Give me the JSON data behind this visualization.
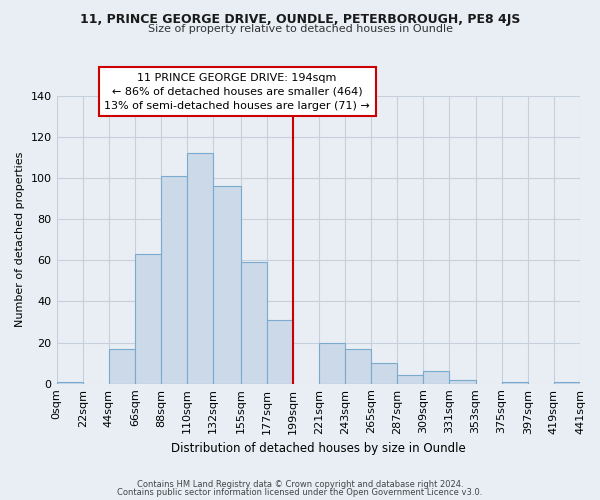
{
  "title_line1": "11, PRINCE GEORGE DRIVE, OUNDLE, PETERBOROUGH, PE8 4JS",
  "title_line2": "Size of property relative to detached houses in Oundle",
  "xlabel": "Distribution of detached houses by size in Oundle",
  "ylabel": "Number of detached properties",
  "bin_edges": [
    0,
    22,
    44,
    66,
    88,
    110,
    132,
    155,
    177,
    199,
    221,
    243,
    265,
    287,
    309,
    331,
    353,
    375,
    397,
    419,
    441
  ],
  "bar_heights": [
    1,
    0,
    17,
    63,
    101,
    112,
    96,
    59,
    31,
    0,
    20,
    17,
    10,
    4,
    6,
    2,
    0,
    1,
    0,
    1
  ],
  "bar_color": "#ccd9e8",
  "bar_edgecolor": "#7aabcf",
  "grid_color": "#c5d0dc",
  "vline_x": 199,
  "vline_color": "#cc0000",
  "annotation_text": "11 PRINCE GEORGE DRIVE: 194sqm\n← 86% of detached houses are smaller (464)\n13% of semi-detached houses are larger (71) →",
  "annotation_box_edgecolor": "#cc0000",
  "annotation_box_facecolor": "#ffffff",
  "ylim": [
    0,
    140
  ],
  "tick_labels": [
    "0sqm",
    "22sqm",
    "44sqm",
    "66sqm",
    "88sqm",
    "110sqm",
    "132sqm",
    "155sqm",
    "177sqm",
    "199sqm",
    "221sqm",
    "243sqm",
    "265sqm",
    "287sqm",
    "309sqm",
    "331sqm",
    "353sqm",
    "375sqm",
    "397sqm",
    "419sqm",
    "441sqm"
  ],
  "yticks": [
    0,
    20,
    40,
    60,
    80,
    100,
    120,
    140
  ],
  "footer_line1": "Contains HM Land Registry data © Crown copyright and database right 2024.",
  "footer_line2": "Contains public sector information licensed under the Open Government Licence v3.0.",
  "bg_color": "#e8eef4"
}
